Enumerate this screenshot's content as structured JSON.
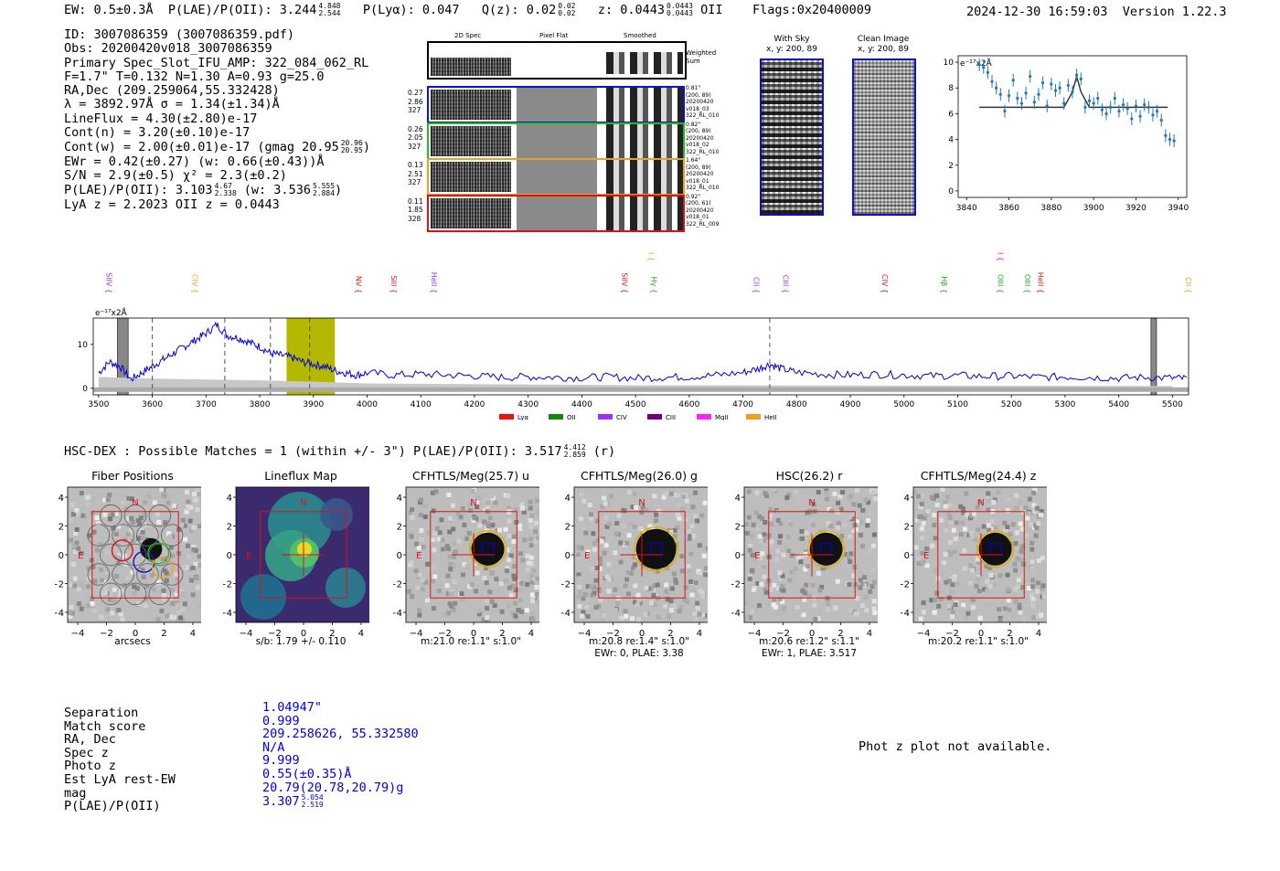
{
  "header": {
    "ew": "EW: 0.5±0.3Å",
    "plae_label": "P(LAE)/P(OII): 3.244",
    "plae_hi": "4.848",
    "plae_lo": "2.544",
    "plya": "P(Lyα): 0.047",
    "qz_label": "Q(z): 0.02",
    "qz_hi": "0.02",
    "qz_lo": "0.02",
    "z_label": "z: 0.0443",
    "z_hi": "0.0443",
    "z_lo": "0.0443",
    "z_type": "OII",
    "flags": "Flags:0x20400009",
    "timestamp": "2024-12-30 16:59:03",
    "version": "Version 1.22.3"
  },
  "info": {
    "id": "ID: 3007086359 (3007086359.pdf)",
    "obs": "Obs: 20200420v018_3007086359",
    "primary": "Primary Spec_Slot_IFU_AMP: 322_084_062_RL",
    "params": "F=1.7\"  T=0.132  N=1.30  A=0.93  g=25.0",
    "radec": "RA,Dec (209.259064,55.332428)",
    "lambda": "λ = 3892.97Å   σ = 1.34(±1.34)Å",
    "lineflux": "LineFlux = 4.30(±2.80)e-17",
    "contn": "Cont(n) = 3.20(±0.10)e-17",
    "contw": "Cont(w) = 2.00(±0.01)e-17 (gmag 20.95",
    "contw_hi": "20.96",
    "contw_lo": "20.95",
    "ewr": "EWr = 0.42(±0.27) (w: 0.66(±0.43))Å",
    "sn": "S/N = 2.9(±0.5)  χ² = 2.3(±0.2)",
    "plae": "P(LAE)/P(OII): 3.103",
    "plae_hi": "4.67",
    "plae_lo": "2.338",
    "plae_w": "(w: 3.536",
    "plae_w_hi": "5.555",
    "plae_w_lo": "2.884",
    "lyaz": "LyA z = 2.2023   OII z = 0.0443"
  },
  "cutouts": {
    "col_2d": "2D Spec",
    "col_flat": "Pixel Flat",
    "col_smooth": "Smoothed",
    "weighted": "Weighted Sum",
    "rows": [
      {
        "a": "0.27",
        "b": "2.86",
        "c": "327",
        "r1": "0.81\"",
        "r2": "(200, 89)",
        "r3": "20200420",
        "r4": "v018_03",
        "r5": "322_RL_010",
        "color": "#1010d0"
      },
      {
        "a": "0.26",
        "b": "2.05",
        "c": "327",
        "r1": "0.82\"",
        "r2": "(200, 89)",
        "r3": "20200420",
        "r4": "v018_02",
        "r5": "322_RL_010",
        "color": "#22bb22"
      },
      {
        "a": "0.13",
        "b": "2.51",
        "c": "327",
        "r1": "1.64\"",
        "r2": "(200, 89)",
        "r3": "20200420",
        "r4": "v018_01",
        "r5": "322_RL_010",
        "color": "#f0a020"
      },
      {
        "a": "0.11",
        "b": "1.85",
        "c": "328",
        "r1": "0.92\"",
        "r2": "(200, 61)",
        "r3": "20200420",
        "r4": "v018_01",
        "r5": "322_RL_009",
        "color": "#e01010"
      }
    ]
  },
  "sky": {
    "with_sky_title": "With Sky",
    "with_sky_xy": "x, y: 200, 89",
    "clean_title": "Clean Image",
    "clean_xy": "x, y: 200, 89"
  },
  "zoom_plot": {
    "label": "e⁻¹⁷x2Å",
    "xticks": [
      "3840",
      "3860",
      "3880",
      "3900",
      "3920",
      "3940"
    ],
    "yticks": [
      "0",
      "2",
      "4",
      "6",
      "8",
      "10"
    ]
  },
  "full_spectrum": {
    "ylabel": "e⁻¹⁷x2Å",
    "xticks": [
      "3500",
      "3600",
      "3700",
      "3800",
      "3900",
      "4000",
      "4100",
      "4200",
      "4300",
      "4400",
      "4500",
      "4600",
      "4700",
      "4800",
      "4900",
      "5000",
      "5100",
      "5200",
      "5300",
      "5400",
      "5500"
    ],
    "yticks": [
      "0",
      "10"
    ],
    "lines": [
      {
        "name": "SiIV",
        "wl": 3520,
        "color": "#9b30ff",
        "high": false
      },
      {
        "name": "CIV",
        "wl": 3680,
        "color": "#f0a020",
        "high": false
      },
      {
        "name": "NV",
        "wl": 3985,
        "color": "#e01010",
        "high": false
      },
      {
        "name": "SiII",
        "wl": 4050,
        "color": "#e01010",
        "high": false
      },
      {
        "name": "HeII",
        "wl": 4125,
        "color": "#9b30ff",
        "high": false
      },
      {
        "name": "SiIV",
        "wl": 4480,
        "color": "#e01010",
        "high": false
      },
      {
        "name": "Hγ",
        "wl": 4535,
        "color": "#22aa22",
        "high": false
      },
      {
        "name": "CIII",
        "wl": 4530,
        "color": "#f0a020",
        "high": true
      },
      {
        "name": "CII",
        "wl": 4725,
        "color": "#9b30ff",
        "high": false
      },
      {
        "name": "CIII",
        "wl": 4780,
        "color": "#9b30ff",
        "high": false
      },
      {
        "name": "CIV",
        "wl": 4965,
        "color": "#e01010",
        "high": false
      },
      {
        "name": "Hβ",
        "wl": 5075,
        "color": "#22aa22",
        "high": false
      },
      {
        "name": "OIII",
        "wl": 5180,
        "color": "#22aa22",
        "high": false
      },
      {
        "name": "OII",
        "wl": 5180,
        "color": "#ff00ff",
        "high": true
      },
      {
        "name": "OIII",
        "wl": 5230,
        "color": "#22aa22",
        "high": false
      },
      {
        "name": "HeII",
        "wl": 5255,
        "color": "#e01010",
        "high": false
      },
      {
        "name": "CII",
        "wl": 5530,
        "color": "#f0a020",
        "high": false
      }
    ],
    "legend": [
      {
        "name": "Lyα",
        "color": "#ee1111"
      },
      {
        "name": "OII",
        "color": "#118811"
      },
      {
        "name": "CIV",
        "color": "#9b30ff"
      },
      {
        "name": "CIII",
        "color": "#770077"
      },
      {
        "name": "MgII",
        "color": "#ff22ff"
      },
      {
        "name": "HeII",
        "color": "#f0a020"
      }
    ]
  },
  "hsc": {
    "line": "HSC-DEX : Possible Matches = 1 (within +/- 3\")  P(LAE)/P(OII): 3.517",
    "hi": "4.412",
    "lo": "2.859",
    "band": "(r)"
  },
  "stamps": [
    {
      "title": "Fiber Positions",
      "foot1": "arcsecs",
      "foot2": ""
    },
    {
      "title": "Lineflux Map",
      "foot1": "s/b: 1.79 +/- 0.110",
      "foot2": ""
    },
    {
      "title": "CFHTLS/Meg(25.7) u",
      "foot1": "m:21.0  re:1.1\"  s:1.0\"",
      "foot2": ""
    },
    {
      "title": "CFHTLS/Meg(26.0) g",
      "foot1": "m:20.8  re:1.4\"  s:1.0\"",
      "foot2": "EWr: 0, PLAE: 3.38"
    },
    {
      "title": "HSC(26.2) r",
      "foot1": "m:20.6  re:1.2\"  s:1.1\"",
      "foot2": "EWr: 1, PLAE: 3.517"
    },
    {
      "title": "CFHTLS/Meg(24.4) z",
      "foot1": "m:20.2  re:1.1\"  s:1.0\"",
      "foot2": ""
    }
  ],
  "stamp_axis": {
    "ticks": [
      "4",
      "2",
      "0",
      "−2",
      "−4"
    ],
    "xticks": [
      "−4",
      "−2",
      "0",
      "2",
      "4"
    ],
    "n_label": "N",
    "e_label": "E"
  },
  "match_table": {
    "labels": [
      "Separation",
      "Match score",
      "RA, Dec",
      "Spec z",
      "Photo z",
      "Est LyA rest-EW",
      "mag",
      "P(LAE)/P(OII)"
    ],
    "values": [
      "1.04947\"",
      "0.999",
      "209.258626, 55.332580",
      "N/A",
      "9.999",
      "0.55(±0.35)Å",
      "20.79(20.78,20.79)g",
      "3.307"
    ],
    "plae_hi": "5.054",
    "plae_lo": "2.519"
  },
  "photz_note": "Phot z plot not available.",
  "chart_data": [
    {
      "type": "scatter",
      "title": "",
      "xlabel": "",
      "ylabel": "e⁻¹⁷x2Å",
      "xlim": [
        3836,
        3944
      ],
      "ylim": [
        -0.5,
        10.5
      ],
      "x": [
        3846,
        3848,
        3850,
        3852,
        3854,
        3856,
        3858,
        3860,
        3862,
        3864,
        3866,
        3868,
        3870,
        3872,
        3874,
        3876,
        3878,
        3880,
        3882,
        3884,
        3886,
        3888,
        3890,
        3892,
        3894,
        3896,
        3898,
        3900,
        3902,
        3904,
        3906,
        3908,
        3910,
        3912,
        3914,
        3916,
        3918,
        3920,
        3922,
        3924,
        3926,
        3928,
        3930,
        3932,
        3934,
        3936,
        3938
      ],
      "y": [
        9.8,
        9.6,
        9.2,
        8.5,
        8.0,
        7.5,
        6.2,
        7.4,
        8.6,
        7.2,
        6.8,
        7.6,
        8.9,
        6.9,
        7.5,
        8.4,
        6.6,
        8.3,
        7.8,
        8.0,
        6.8,
        8.2,
        7.7,
        9.0,
        8.7,
        6.5,
        7.0,
        6.8,
        7.2,
        6.3,
        6.0,
        6.5,
        7.2,
        6.2,
        6.7,
        6.4,
        5.6,
        6.6,
        5.8,
        6.7,
        6.5,
        5.9,
        6.2,
        5.5,
        4.3,
        4.0,
        3.9
      ],
      "fit_x": [
        3846,
        3886,
        3890,
        3892,
        3894,
        3898,
        3935
      ],
      "fit_y": [
        6.5,
        6.5,
        7.7,
        8.9,
        7.7,
        6.5,
        6.5
      ]
    },
    {
      "type": "line",
      "title": "",
      "xlabel": "",
      "ylabel": "e⁻¹⁷x2Å",
      "xlim": [
        3490,
        5530
      ],
      "ylim": [
        -1.5,
        16
      ],
      "highlight_range": [
        3850,
        3940
      ],
      "grey_bands": [
        [
          3535,
          3555
        ],
        [
          5460,
          5465
        ]
      ],
      "dashed_lines": [
        3600,
        3735,
        3820,
        3893,
        4750
      ],
      "series": [
        {
          "name": "spectrum",
          "x": [
            3500,
            3520,
            3540,
            3560,
            3580,
            3600,
            3620,
            3640,
            3660,
            3680,
            3700,
            3720,
            3740,
            3760,
            3780,
            3800,
            3820,
            3840,
            3860,
            3880,
            3900,
            3920,
            3940,
            3960,
            3980,
            4000,
            4050,
            4100,
            4150,
            4200,
            4250,
            4300,
            4350,
            4400,
            4450,
            4500,
            4550,
            4600,
            4650,
            4700,
            4730,
            4750,
            4770,
            4800,
            4850,
            4900,
            4950,
            5000,
            5050,
            5100,
            5150,
            5200,
            5250,
            5300,
            5350,
            5400,
            5450,
            5500,
            5530
          ],
          "values": [
            3.5,
            6.0,
            5.0,
            2.0,
            3.5,
            5.0,
            6.5,
            8.0,
            9.5,
            11.0,
            12.5,
            14.5,
            12.0,
            11.5,
            10.5,
            9.5,
            8.0,
            7.5,
            7.0,
            6.0,
            5.5,
            5.0,
            4.0,
            3.5,
            3.0,
            3.5,
            3.0,
            3.2,
            3.0,
            2.8,
            2.5,
            2.6,
            2.5,
            2.4,
            2.6,
            2.3,
            2.5,
            2.6,
            3.0,
            3.6,
            4.5,
            5.5,
            4.5,
            3.6,
            3.2,
            3.0,
            3.2,
            3.0,
            2.8,
            2.9,
            2.7,
            2.8,
            2.5,
            2.6,
            2.5,
            2.3,
            2.5,
            2.3,
            2.2
          ]
        },
        {
          "name": "error",
          "x": [
            3500,
            3600,
            3700,
            3800,
            3900,
            4000,
            4500,
            5000,
            5500
          ],
          "values": [
            2.6,
            2.2,
            2.0,
            1.8,
            1.5,
            1.1,
            0.7,
            0.6,
            0.5
          ]
        }
      ]
    }
  ]
}
